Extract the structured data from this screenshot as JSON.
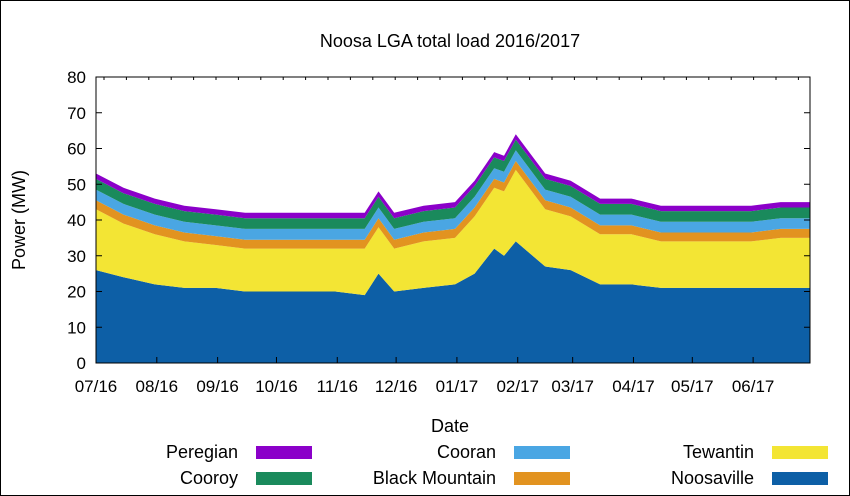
{
  "chart_data": {
    "type": "area",
    "stacked": true,
    "title": "Noosa LGA total load 2016/2017",
    "xlabel": "Date",
    "ylabel": "Power (MW)",
    "ylim": [
      0,
      80
    ],
    "yticks": [
      0,
      10,
      20,
      30,
      40,
      50,
      60,
      70,
      80
    ],
    "xlim": [
      "2016-07-01",
      "2017-06-30"
    ],
    "xtick_labels": [
      "07/16",
      "08/16",
      "09/16",
      "10/16",
      "11/16",
      "12/16",
      "01/17",
      "02/17",
      "03/17",
      "04/17",
      "05/17",
      "06/17"
    ],
    "x": [
      "2016-07-01",
      "2016-07-15",
      "2016-07-31",
      "2016-08-15",
      "2016-08-31",
      "2016-09-15",
      "2016-09-30",
      "2016-10-15",
      "2016-10-31",
      "2016-11-15",
      "2016-11-22",
      "2016-11-30",
      "2016-12-15",
      "2016-12-31",
      "2017-01-10",
      "2017-01-20",
      "2017-01-25",
      "2017-01-31",
      "2017-02-15",
      "2017-02-28",
      "2017-03-15",
      "2017-03-31",
      "2017-04-15",
      "2017-04-30",
      "2017-05-15",
      "2017-05-31",
      "2017-06-15",
      "2017-06-30"
    ],
    "series": [
      {
        "name": "Noosaville",
        "color": "#0d5fa6",
        "values": [
          26,
          24,
          22,
          21,
          21,
          20,
          20,
          20,
          20,
          19,
          25,
          20,
          21,
          22,
          25,
          32,
          30,
          34,
          27,
          26,
          22,
          22,
          21,
          21,
          21,
          21,
          21,
          21
        ]
      },
      {
        "name": "Tewantin",
        "color": "#f3e534",
        "values": [
          17,
          15,
          14,
          13,
          12,
          12,
          12,
          12,
          12,
          13,
          13,
          12,
          13,
          13,
          16,
          17,
          18,
          20,
          16,
          15,
          14,
          14,
          13,
          13,
          13,
          13,
          14,
          14
        ]
      },
      {
        "name": "Black Mountain",
        "color": "#e29320",
        "values": [
          2.5,
          2.5,
          2.5,
          2.5,
          2.5,
          2.5,
          2.5,
          2.5,
          2.5,
          2.5,
          2.5,
          2.5,
          2.5,
          2.5,
          2.5,
          2.5,
          2.5,
          2.5,
          2.5,
          2.5,
          2.5,
          2.5,
          2.5,
          2.5,
          2.5,
          2.5,
          2.5,
          2.5
        ]
      },
      {
        "name": "Cooran",
        "color": "#4aa6e3",
        "values": [
          3,
          3,
          3,
          3,
          3,
          3,
          3,
          3,
          3,
          3,
          3,
          3,
          3,
          3,
          3,
          3,
          3,
          3,
          3,
          3,
          3,
          3,
          3,
          3,
          3,
          3,
          3,
          3
        ]
      },
      {
        "name": "Cooroy",
        "color": "#1a8a5c",
        "values": [
          3,
          3,
          3,
          3,
          3,
          3,
          3,
          3,
          3,
          3,
          3,
          3,
          3,
          3,
          3,
          3,
          3,
          3,
          3,
          3,
          3,
          3,
          3,
          3,
          3,
          3,
          3,
          3
        ]
      },
      {
        "name": "Peregian",
        "color": "#8b00c9",
        "values": [
          1.5,
          1.5,
          1.5,
          1.5,
          1.5,
          1.5,
          1.5,
          1.5,
          1.5,
          1.5,
          1.5,
          1.5,
          1.5,
          1.5,
          1.5,
          1.5,
          1.5,
          1.5,
          1.5,
          1.5,
          1.5,
          1.5,
          1.5,
          1.5,
          1.5,
          1.5,
          1.5,
          1.5
        ]
      }
    ],
    "legend_order": [
      "Peregian",
      "Cooran",
      "Tewantin",
      "Cooroy",
      "Black Mountain",
      "Noosaville"
    ],
    "legend_placement": "bottom",
    "grid": false
  }
}
